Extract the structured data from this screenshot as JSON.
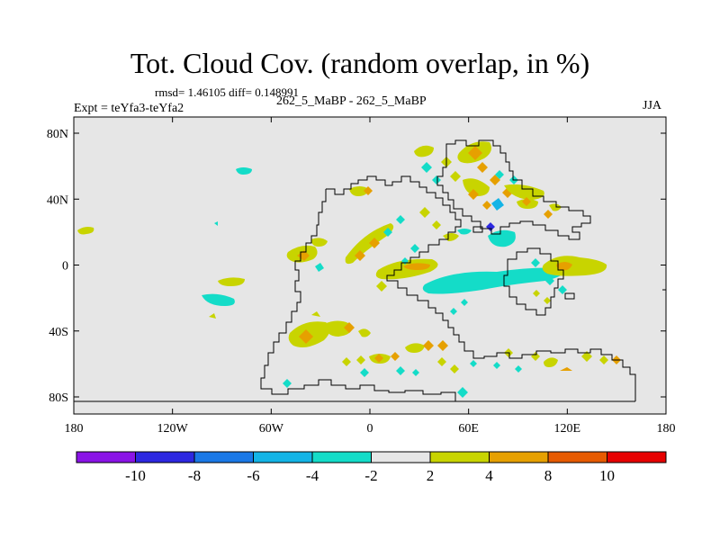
{
  "title": "Tot. Cloud Cov. (random overlap, in %)",
  "stats": "rmsd= 1.46105  diff= 0.148991",
  "experiment": "Expt = teYfa3-teYfa2",
  "runs": "262_5_MaBP - 262_5_MaBP",
  "season": "JJA",
  "x_ticks": [
    {
      "lon": -180,
      "label": "180"
    },
    {
      "lon": -120,
      "label": "120W"
    },
    {
      "lon": -60,
      "label": "60W"
    },
    {
      "lon": 0,
      "label": "0"
    },
    {
      "lon": 60,
      "label": "60E"
    },
    {
      "lon": 120,
      "label": "120E"
    },
    {
      "lon": 180,
      "label": "180"
    }
  ],
  "y_ticks": [
    {
      "lat": 80,
      "label": "80N"
    },
    {
      "lat": 40,
      "label": "40N"
    },
    {
      "lat": 0,
      "label": "0"
    },
    {
      "lat": -40,
      "label": "40S"
    },
    {
      "lat": -80,
      "label": "80S"
    }
  ],
  "colorbar": {
    "colors": [
      "#8a14e6",
      "#2d28e0",
      "#1a78e6",
      "#14b4e6",
      "#14dcc8",
      "#e6e6e6",
      "#c8d400",
      "#e6a000",
      "#e65a00",
      "#e60000"
    ],
    "labels": [
      "-10",
      "-8",
      "-6",
      "-4",
      "-2",
      "2",
      "4",
      "8",
      "10"
    ]
  },
  "colors": {
    "background": "#e6e6e6",
    "coastline": "#000000"
  }
}
